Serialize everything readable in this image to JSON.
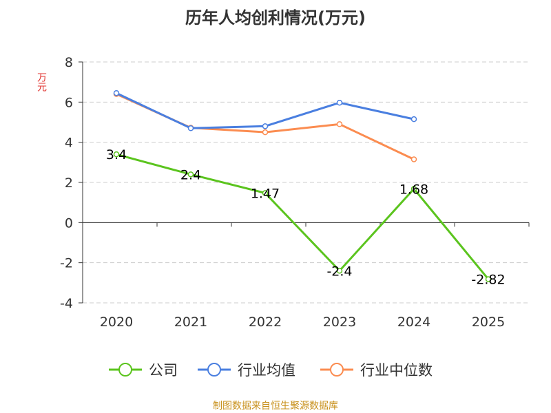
{
  "chart_data": {
    "type": "line",
    "title": "历年人均创利情况(万元)",
    "ylabel": "万元",
    "categories": [
      "2020",
      "2021",
      "2022",
      "2023",
      "2024",
      "2025"
    ],
    "ylim": [
      -4,
      8
    ],
    "yticks": [
      8,
      6,
      4,
      2,
      0,
      -2,
      -4
    ],
    "grid": true,
    "legend_position": "bottom",
    "series": [
      {
        "name": "公司",
        "color": "#5bc41e",
        "values": [
          3.4,
          2.4,
          1.47,
          -2.4,
          1.68,
          -2.82
        ],
        "labels": [
          "3.4",
          "2.4",
          "1.47",
          "-2.4",
          "1.68",
          "-2.82"
        ]
      },
      {
        "name": "行业均值",
        "color": "#4a7fe0",
        "values": [
          6.45,
          4.7,
          4.8,
          5.97,
          5.15,
          null
        ]
      },
      {
        "name": "行业中位数",
        "color": "#fb8c50",
        "values": [
          6.4,
          4.72,
          4.5,
          4.9,
          3.15,
          null
        ]
      }
    ]
  },
  "source": "制图数据来自恒生聚源数据库"
}
